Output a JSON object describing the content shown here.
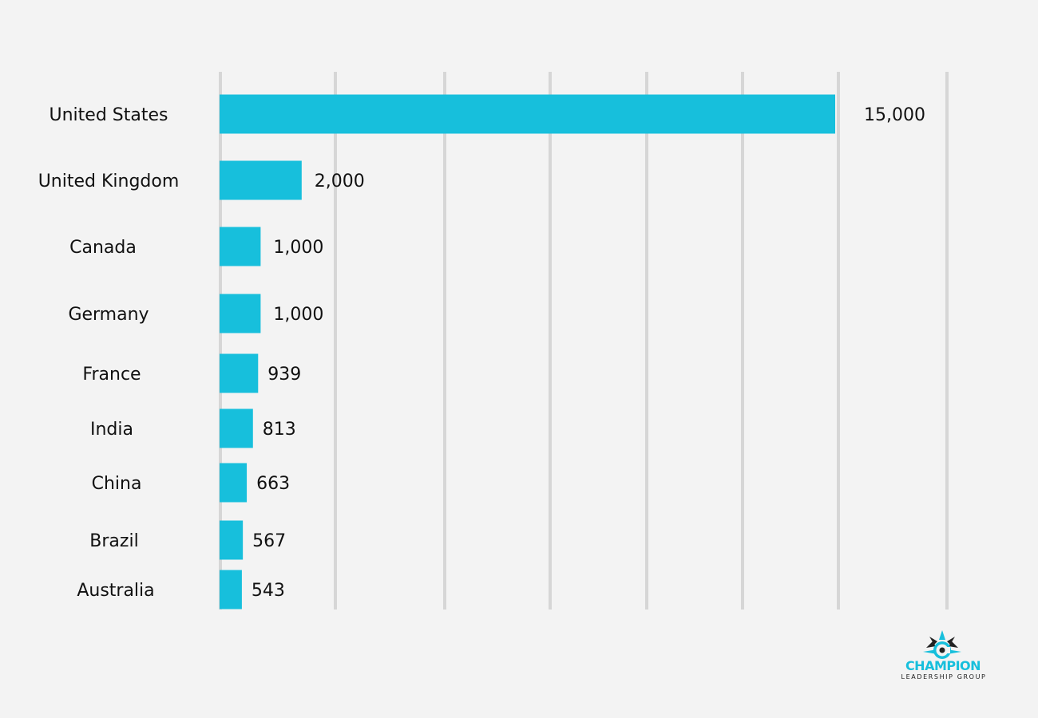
{
  "chart_data": {
    "type": "bar",
    "orientation": "horizontal",
    "categories": [
      "United States",
      "United Kingdom",
      "Canada",
      "Germany",
      "France",
      "India",
      "China",
      "Brazil",
      "Australia"
    ],
    "values": [
      15000,
      2000,
      1000,
      1000,
      939,
      813,
      663,
      567,
      543
    ],
    "value_labels": [
      "15,000",
      "2,000",
      "1,000",
      "1,000",
      "939",
      "813",
      "663",
      "567",
      "543"
    ],
    "xlim": [
      0,
      15000
    ],
    "grid": true,
    "legend": "none",
    "title": "",
    "xlabel": "",
    "ylabel": ""
  },
  "colors": {
    "background": "#f3f3f3",
    "bar": "#17bfdc",
    "gridline": "#d6d6d6",
    "text": "#111111",
    "brand_blue": "#17bfdc",
    "brand_dark": "#222222"
  },
  "logo": {
    "name": "CHAMPION",
    "subtitle": "LEADERSHIP GROUP",
    "icon": "compass-icon"
  }
}
